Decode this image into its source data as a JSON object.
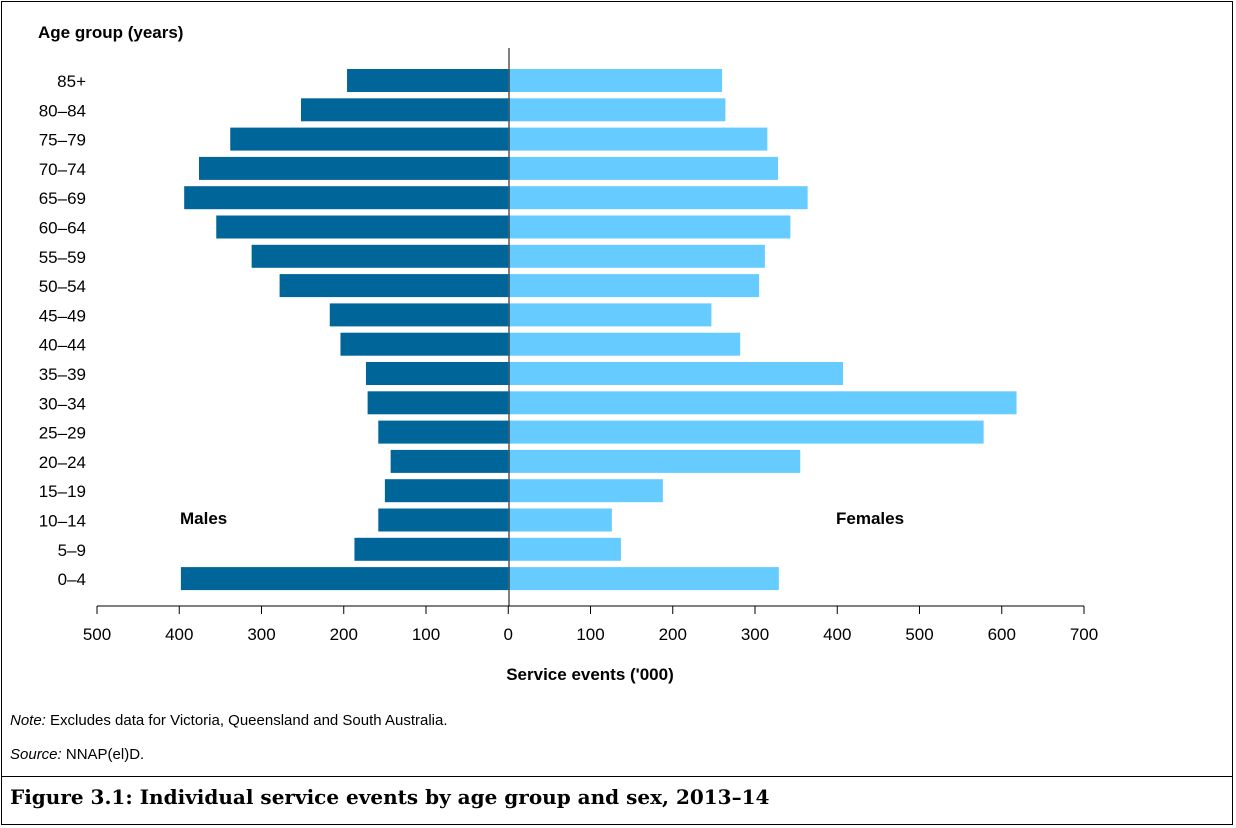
{
  "chart_data": {
    "type": "bar",
    "orientation": "horizontal",
    "subtype": "population-pyramid",
    "categories": [
      "85+",
      "80–84",
      "75–79",
      "70–74",
      "65–69",
      "60–64",
      "55–59",
      "50–54",
      "45–49",
      "40–44",
      "35–39",
      "30–34",
      "25–29",
      "20–24",
      "15–19",
      "10–14",
      "5–9",
      "0–4"
    ],
    "series": [
      {
        "name": "Males",
        "side": "left",
        "color": "#006699",
        "values": [
          196,
          252,
          338,
          376,
          394,
          355,
          312,
          278,
          217,
          204,
          173,
          171,
          158,
          143,
          150,
          158,
          187,
          398
        ]
      },
      {
        "name": "Females",
        "side": "right",
        "color": "#66ccff",
        "values": [
          260,
          264,
          315,
          328,
          364,
          343,
          312,
          305,
          247,
          282,
          407,
          618,
          578,
          355,
          188,
          126,
          137,
          329
        ]
      }
    ],
    "x_ticks": [
      "500",
      "400",
      "300",
      "200",
      "100",
      "0",
      "100",
      "200",
      "300",
      "400",
      "500",
      "600",
      "700"
    ],
    "xlim": [
      -500,
      700
    ],
    "xlabel": "Service events ('000)",
    "ylabel": "Age group (years)"
  },
  "note": {
    "label": "Note:",
    "text": " Excludes data for Victoria, Queensland and South Australia."
  },
  "source": {
    "label": "Source:",
    "text": " NNAP(el)D."
  },
  "figure_title": "Figure 3.1: Individual service events by age group and sex, 2013–14"
}
